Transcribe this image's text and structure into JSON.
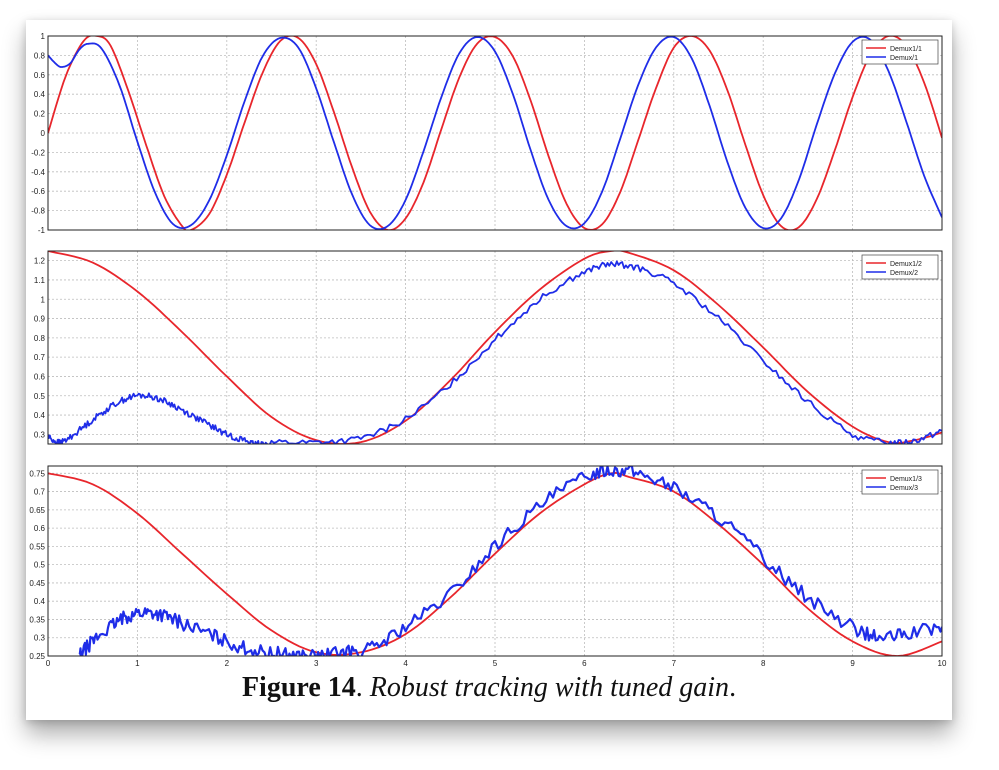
{
  "caption": {
    "label": "Figure 14",
    "separator": ". ",
    "text": "Robust tracking with tuned gain",
    "end": "."
  },
  "colors": {
    "red": "#e8262c",
    "blue": "#1f2de8",
    "grid": "#bdbdbd",
    "axis": "#222222"
  },
  "chart_data": [
    {
      "type": "line",
      "xlim": [
        0,
        10
      ],
      "ylim": [
        -1,
        1
      ],
      "xticks": [],
      "yticks": [
        "-1",
        "-0.8",
        "-0.6",
        "-0.4",
        "-0.2",
        "0",
        "0.2",
        "0.4",
        "0.6",
        "0.8",
        "1"
      ],
      "ytick_values": [
        -1,
        -0.8,
        -0.6,
        -0.4,
        -0.2,
        0,
        0.2,
        0.4,
        0.6,
        0.8,
        1
      ],
      "grid": true,
      "legend": "top-right",
      "series": [
        {
          "name": "Demux1/1",
          "color": "#e8262c",
          "x": [
            0,
            0.2,
            0.4,
            0.55,
            0.7,
            0.9,
            1.1,
            1.3,
            1.5,
            1.6,
            1.8,
            2.0,
            2.2,
            2.4,
            2.6,
            2.8,
            3.0,
            3.2,
            3.4,
            3.6,
            3.8,
            4.0,
            4.2,
            4.4,
            4.6,
            4.8,
            5.0,
            5.2,
            5.4,
            5.6,
            5.8,
            6.0,
            6.2,
            6.4,
            6.6,
            6.8,
            7.0,
            7.2,
            7.4,
            7.6,
            7.8,
            8.0,
            8.2,
            8.4,
            8.6,
            8.8,
            9.0,
            9.2,
            9.4,
            9.6,
            9.8,
            10.0
          ],
          "y": [
            0,
            0.59,
            0.95,
            1.0,
            0.9,
            0.43,
            -0.13,
            -0.65,
            -0.96,
            -1.0,
            -0.84,
            -0.43,
            0.11,
            0.62,
            0.95,
            0.98,
            0.71,
            0.21,
            -0.35,
            -0.81,
            -1.0,
            -0.88,
            -0.51,
            0.04,
            0.57,
            0.92,
            0.99,
            0.79,
            0.33,
            -0.24,
            -0.73,
            -0.98,
            -0.94,
            -0.61,
            -0.08,
            0.46,
            0.88,
            1.0,
            0.85,
            0.44,
            -0.12,
            -0.64,
            -0.96,
            -0.97,
            -0.68,
            -0.18,
            0.37,
            0.81,
            1.0,
            0.9,
            0.52,
            -0.05
          ]
        },
        {
          "name": "Demux/1",
          "color": "#1f2de8",
          "x": [
            0,
            0.08,
            0.15,
            0.25,
            0.35,
            0.45,
            0.6,
            0.8,
            1.0,
            1.2,
            1.4,
            1.6,
            1.8,
            2.0,
            2.2,
            2.4,
            2.6,
            2.8,
            3.0,
            3.2,
            3.4,
            3.6,
            3.8,
            4.0,
            4.2,
            4.4,
            4.6,
            4.8,
            5.0,
            5.2,
            5.4,
            5.6,
            5.8,
            6.0,
            6.2,
            6.4,
            6.6,
            6.8,
            7.0,
            7.2,
            7.4,
            7.6,
            7.8,
            8.0,
            8.2,
            8.4,
            8.6,
            8.8,
            9.0,
            9.2,
            9.4,
            9.6,
            9.8,
            10.0
          ],
          "y": [
            0.8,
            0.72,
            0.68,
            0.72,
            0.86,
            0.92,
            0.87,
            0.49,
            -0.09,
            -0.62,
            -0.94,
            -0.95,
            -0.7,
            -0.23,
            0.33,
            0.79,
            0.98,
            0.88,
            0.46,
            -0.1,
            -0.63,
            -0.95,
            -0.96,
            -0.69,
            -0.19,
            0.37,
            0.82,
            0.99,
            0.84,
            0.4,
            -0.18,
            -0.69,
            -0.96,
            -0.93,
            -0.6,
            -0.06,
            0.49,
            0.88,
            0.99,
            0.77,
            0.28,
            -0.3,
            -0.77,
            -0.98,
            -0.88,
            -0.48,
            0.09,
            0.61,
            0.94,
            0.96,
            0.64,
            0.12,
            -0.44,
            -0.87
          ]
        }
      ]
    },
    {
      "type": "line",
      "xlim": [
        0,
        10
      ],
      "ylim": [
        0.25,
        1.25
      ],
      "xticks": [],
      "yticks": [
        "0.3",
        "0.4",
        "0.5",
        "0.6",
        "0.7",
        "0.8",
        "0.9",
        "1",
        "1.1",
        "1.2"
      ],
      "ytick_values": [
        0.3,
        0.4,
        0.5,
        0.6,
        0.7,
        0.8,
        0.9,
        1.0,
        1.1,
        1.2
      ],
      "grid": true,
      "legend": "top-right",
      "series": [
        {
          "name": "Demux1/2",
          "color": "#e8262c",
          "x": [
            0,
            0.5,
            1.0,
            1.5,
            2.0,
            2.5,
            3.0,
            3.5,
            4.0,
            4.5,
            5.0,
            5.5,
            6.0,
            6.3,
            6.5,
            7.0,
            7.5,
            8.0,
            8.5,
            9.0,
            9.4,
            9.7,
            10.0
          ],
          "y": [
            1.25,
            1.19,
            1.04,
            0.83,
            0.6,
            0.39,
            0.27,
            0.26,
            0.37,
            0.58,
            0.83,
            1.05,
            1.21,
            1.25,
            1.24,
            1.15,
            0.97,
            0.75,
            0.52,
            0.34,
            0.26,
            0.27,
            0.31
          ]
        },
        {
          "name": "Demux/2",
          "color": "#1f2de8",
          "x": [
            0,
            0.1,
            0.2,
            0.4,
            0.6,
            0.8,
            1.0,
            1.2,
            1.4,
            1.6,
            1.8,
            2.0,
            2.2,
            2.3,
            2.5,
            3.0,
            3.5,
            4.0,
            4.5,
            5.0,
            5.5,
            6.0,
            6.3,
            6.6,
            7.0,
            7.5,
            8.0,
            8.5,
            9.0,
            9.4,
            9.7,
            10.0
          ],
          "y": [
            0.29,
            0.26,
            0.27,
            0.34,
            0.41,
            0.47,
            0.5,
            0.49,
            0.45,
            0.4,
            0.35,
            0.3,
            0.27,
            0.25,
            0.26,
            0.26,
            0.28,
            0.38,
            0.56,
            0.79,
            1.0,
            1.14,
            1.18,
            1.16,
            1.08,
            0.9,
            0.68,
            0.47,
            0.3,
            0.26,
            0.27,
            0.32
          ]
        }
      ]
    },
    {
      "type": "line",
      "xlim": [
        0,
        10
      ],
      "ylim": [
        0.25,
        0.77
      ],
      "xticks": [
        "0",
        "1",
        "2",
        "3",
        "4",
        "5",
        "6",
        "7",
        "8",
        "9",
        "10"
      ],
      "xtick_values": [
        0,
        1,
        2,
        3,
        4,
        5,
        6,
        7,
        8,
        9,
        10
      ],
      "yticks": [
        "0.25",
        "0.3",
        "0.35",
        "0.4",
        "0.45",
        "0.5",
        "0.55",
        "0.6",
        "0.65",
        "0.7",
        "0.75"
      ],
      "ytick_values": [
        0.25,
        0.3,
        0.35,
        0.4,
        0.45,
        0.5,
        0.55,
        0.6,
        0.65,
        0.7,
        0.75
      ],
      "grid": true,
      "legend": "top-right",
      "series": [
        {
          "name": "Demux1/3",
          "color": "#e8262c",
          "x": [
            0,
            0.5,
            1.0,
            1.5,
            2.0,
            2.5,
            3.0,
            3.5,
            4.0,
            4.5,
            5.0,
            5.5,
            6.0,
            6.3,
            6.5,
            7.0,
            7.5,
            8.0,
            8.5,
            9.0,
            9.5,
            10.0
          ],
          "y": [
            0.75,
            0.72,
            0.64,
            0.53,
            0.42,
            0.32,
            0.26,
            0.26,
            0.31,
            0.41,
            0.53,
            0.64,
            0.72,
            0.75,
            0.74,
            0.7,
            0.61,
            0.5,
            0.38,
            0.29,
            0.25,
            0.29
          ]
        },
        {
          "name": "Demux/3",
          "color": "#1f2de8",
          "x": [
            0.35,
            0.5,
            0.7,
            0.9,
            1.1,
            1.3,
            1.5,
            1.8,
            2.1,
            2.4,
            2.7,
            3.0,
            3.3,
            3.6,
            4.0,
            4.5,
            5.0,
            5.5,
            6.0,
            6.3,
            6.6,
            7.0,
            7.5,
            8.0,
            8.5,
            9.0,
            9.3,
            9.6,
            10.0
          ],
          "y": [
            0.25,
            0.29,
            0.33,
            0.36,
            0.37,
            0.36,
            0.34,
            0.31,
            0.28,
            0.26,
            0.255,
            0.25,
            0.26,
            0.27,
            0.33,
            0.42,
            0.55,
            0.66,
            0.74,
            0.76,
            0.75,
            0.71,
            0.63,
            0.52,
            0.41,
            0.33,
            0.3,
            0.31,
            0.33
          ]
        }
      ]
    }
  ]
}
